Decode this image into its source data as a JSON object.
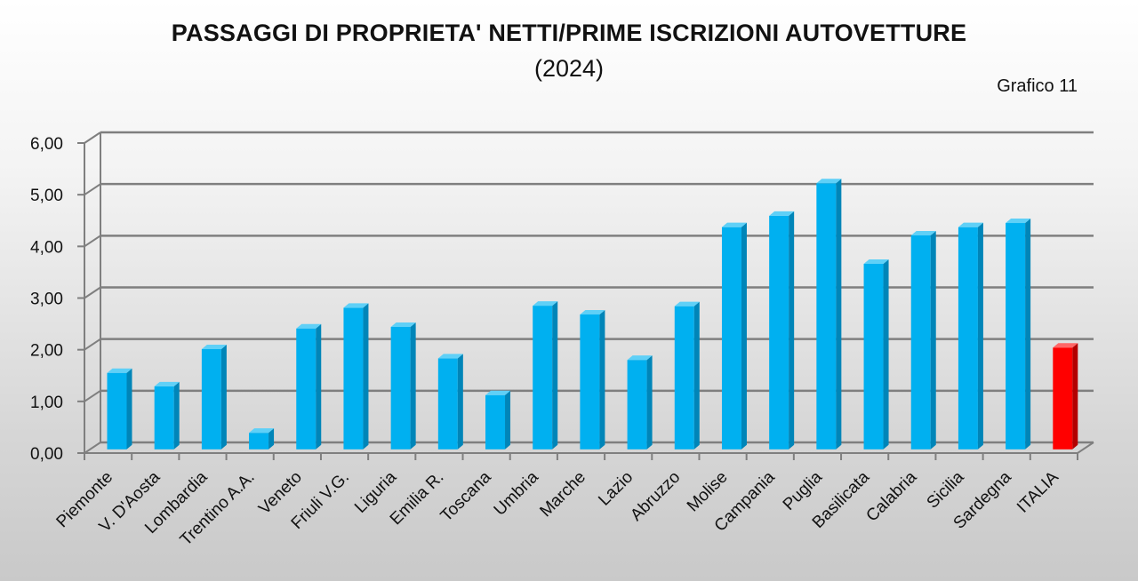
{
  "chart_data": {
    "type": "bar",
    "title": "PASSAGGI DI PROPRIETA' NETTI/PRIME ISCRIZIONI AUTOVETTURE",
    "subtitle": "(2024)",
    "note": "Grafico 11",
    "xlabel": "",
    "ylabel": "",
    "ylim": [
      0,
      6
    ],
    "y_ticks": [
      "0,00",
      "1,00",
      "2,00",
      "3,00",
      "4,00",
      "5,00",
      "6,00"
    ],
    "grid": true,
    "legend": "none",
    "categories": [
      "Piemonte",
      "V. D'Aosta",
      "Lombardia",
      "Trentino A.A.",
      "Veneto",
      "Friuli V.G.",
      "Liguria",
      "Emilia R.",
      "Toscana",
      "Umbria",
      "Marche",
      "Lazio",
      "Abruzzo",
      "Molise",
      "Campania",
      "Puglia",
      "Basilicata",
      "Calabria",
      "Sicilia",
      "Sardegna",
      "ITALIA"
    ],
    "values": [
      1.48,
      1.22,
      1.94,
      0.32,
      2.34,
      2.74,
      2.37,
      1.76,
      1.05,
      2.78,
      2.61,
      1.73,
      2.77,
      4.3,
      4.52,
      5.15,
      3.59,
      4.14,
      4.3,
      4.38,
      1.97
    ],
    "colors": {
      "default_bar": "#00b0f0",
      "highlight_bar": "#ff0000",
      "highlight_category": "ITALIA",
      "grid": "#7f7f7f"
    }
  }
}
